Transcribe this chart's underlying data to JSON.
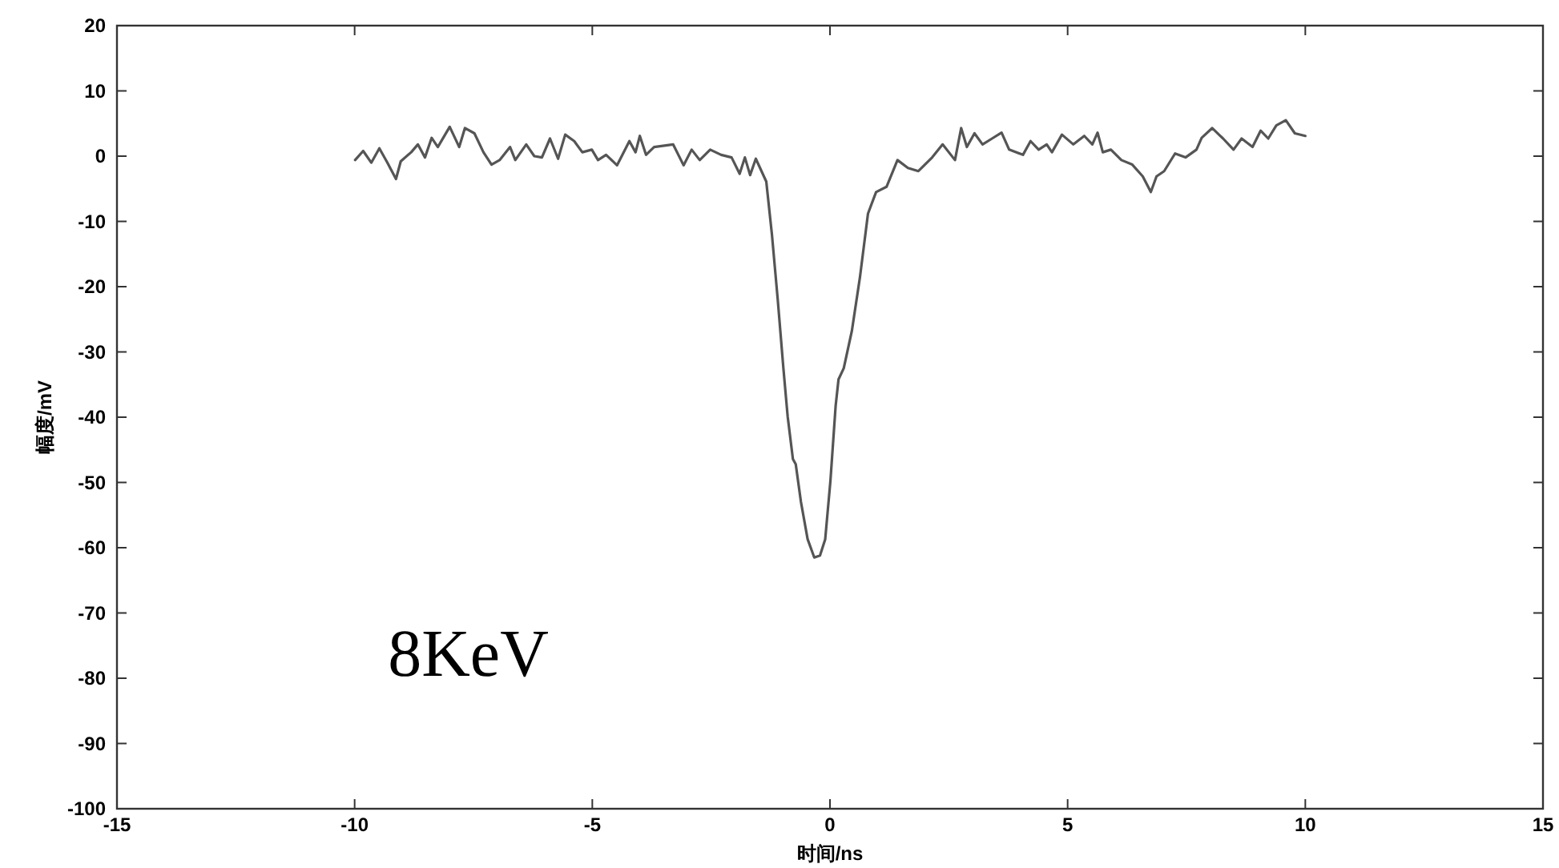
{
  "chart_data": {
    "type": "line",
    "xlabel": "时间/ns",
    "ylabel": "幅度/mV",
    "annotations": [
      "8KeV"
    ],
    "xlim": [
      -15,
      15
    ],
    "ylim": [
      -100,
      20
    ],
    "xticks": [
      -15,
      -10,
      -5,
      0,
      5,
      10,
      15
    ],
    "yticks": [
      -100,
      -90,
      -80,
      -70,
      -60,
      -50,
      -40,
      -30,
      -20,
      -10,
      0,
      10,
      20
    ],
    "grid": false,
    "marker": "none",
    "line_style": "solid",
    "series": [
      {
        "color": "#555555",
        "x": [
          -9.99,
          -9.82,
          -9.65,
          -9.48,
          -9.31,
          -9.13,
          -9.03,
          -8.81,
          -8.67,
          -8.52,
          -8.38,
          -8.25,
          -8.0,
          -7.8,
          -7.68,
          -7.48,
          -7.29,
          -7.12,
          -6.95,
          -6.73,
          -6.62,
          -6.39,
          -6.22,
          -6.06,
          -5.89,
          -5.72,
          -5.57,
          -5.38,
          -5.21,
          -5.01,
          -4.88,
          -4.71,
          -4.48,
          -4.22,
          -4.09,
          -4.0,
          -3.87,
          -3.7,
          -3.3,
          -3.08,
          -2.91,
          -2.74,
          -2.52,
          -2.29,
          -2.07,
          -1.9,
          -1.79,
          -1.68,
          -1.56,
          -1.39,
          -1.34,
          -1.22,
          -1.1,
          -0.98,
          -0.89,
          -0.78,
          -0.72,
          -0.61,
          -0.47,
          -0.33,
          -0.21,
          -0.1,
          0.01,
          0.12,
          0.18,
          0.29,
          0.46,
          0.63,
          0.8,
          0.97,
          1.19,
          1.42,
          1.64,
          1.86,
          2.15,
          2.37,
          2.63,
          2.76,
          2.88,
          3.04,
          3.21,
          3.41,
          3.61,
          3.77,
          4.06,
          4.22,
          4.39,
          4.56,
          4.67,
          4.88,
          5.12,
          5.35,
          5.52,
          5.63,
          5.74,
          5.91,
          6.13,
          6.36,
          6.58,
          6.75,
          6.87,
          7.03,
          7.26,
          7.48,
          7.71,
          7.82,
          8.04,
          8.27,
          8.49,
          8.66,
          8.89,
          9.06,
          9.22,
          9.39,
          9.59,
          9.78,
          10.0
        ],
        "values": [
          -0.6,
          0.8,
          -1.0,
          1.2,
          -1.0,
          -3.5,
          -0.8,
          0.6,
          1.8,
          -0.2,
          2.8,
          1.4,
          4.5,
          1.4,
          4.3,
          3.5,
          0.6,
          -1.3,
          -0.6,
          1.4,
          -0.6,
          1.8,
          0,
          -0.2,
          2.7,
          -0.4,
          3.3,
          2.3,
          0.6,
          1.0,
          -0.6,
          0.2,
          -1.4,
          2.3,
          0.6,
          3.1,
          0.2,
          1.4,
          1.8,
          -1.4,
          1.0,
          -0.6,
          1.0,
          0.2,
          -0.2,
          -2.7,
          -0.2,
          -2.9,
          -0.4,
          -3.1,
          -3.9,
          -12.1,
          -21.9,
          -32.5,
          -39.9,
          -46.4,
          -47.2,
          -53.0,
          -58.7,
          -61.5,
          -61.2,
          -58.7,
          -49.7,
          -38.2,
          -34.2,
          -32.5,
          -26.8,
          -18.6,
          -8.8,
          -5.5,
          -4.7,
          -0.6,
          -1.8,
          -2.3,
          -0.2,
          1.8,
          -0.6,
          4.3,
          1.4,
          3.5,
          1.8,
          2.7,
          3.6,
          1.0,
          0.2,
          2.3,
          1.0,
          1.8,
          0.6,
          3.3,
          1.8,
          3.1,
          1.8,
          3.6,
          0.6,
          1.0,
          -0.6,
          -1.3,
          -3.1,
          -5.5,
          -3.1,
          -2.3,
          0.4,
          -0.2,
          1.0,
          2.8,
          4.3,
          2.7,
          1.0,
          2.7,
          1.4,
          3.9,
          2.7,
          4.7,
          5.5,
          3.5,
          3.1
        ]
      }
    ]
  }
}
